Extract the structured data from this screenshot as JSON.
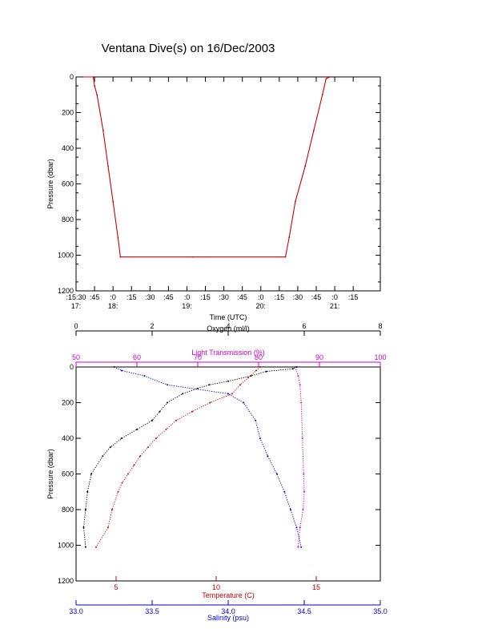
{
  "title": "Ventana Dive(s) on 16/Dec/2003",
  "colors": {
    "axis": "#000000",
    "temperature": "#cc0000",
    "salinity": "#0000cc",
    "oxygen": "#000000",
    "light": "#cc00cc",
    "track": "#cc0000"
  },
  "chart_data": [
    {
      "type": "line",
      "name": "dive-track",
      "xlabel": "Time (UTC)",
      "ylabel": "Pressure (dbar)",
      "x_unit": "minutes after 17:15",
      "xlim": [
        0,
        247
      ],
      "ylim": [
        0,
        1200
      ],
      "y_ticks": [
        "0",
        "200",
        "400",
        "600",
        "800",
        "1000",
        "1200"
      ],
      "x_ticks": [
        {
          "m": 0,
          "minor": ":15:30",
          "major": "17:"
        },
        {
          "m": 15,
          "minor": ":45",
          "major": ""
        },
        {
          "m": 30,
          "minor": ":0",
          "major": "18:"
        },
        {
          "m": 45,
          "minor": ":15",
          "major": ""
        },
        {
          "m": 60,
          "minor": ":30",
          "major": ""
        },
        {
          "m": 75,
          "minor": ":45",
          "major": ""
        },
        {
          "m": 90,
          "minor": ":0",
          "major": "19:"
        },
        {
          "m": 105,
          "minor": ":15",
          "major": ""
        },
        {
          "m": 120,
          "minor": ":30",
          "major": ""
        },
        {
          "m": 135,
          "minor": ":45",
          "major": ""
        },
        {
          "m": 150,
          "minor": ":0",
          "major": "20:"
        },
        {
          "m": 165,
          "minor": ":15",
          "major": ""
        },
        {
          "m": 180,
          "minor": ":30",
          "major": ""
        },
        {
          "m": 195,
          "minor": ":45",
          "major": ""
        },
        {
          "m": 210,
          "minor": ":0",
          "major": "21:"
        },
        {
          "m": 225,
          "minor": ":15",
          "major": ""
        }
      ],
      "points": [
        [
          5,
          0
        ],
        [
          14,
          0
        ],
        [
          15,
          50
        ],
        [
          17,
          100
        ],
        [
          22,
          300
        ],
        [
          26,
          500
        ],
        [
          30,
          700
        ],
        [
          34,
          900
        ],
        [
          36,
          1010
        ],
        [
          95,
          1010
        ],
        [
          170,
          1010
        ],
        [
          173,
          900
        ],
        [
          178,
          700
        ],
        [
          186,
          500
        ],
        [
          193,
          300
        ],
        [
          200,
          100
        ],
        [
          203,
          10
        ],
        [
          206,
          0
        ]
      ]
    },
    {
      "type": "scatter",
      "name": "profiles",
      "ylabel": "Pressure (dbar)",
      "ylim": [
        0,
        1200
      ],
      "y_ticks": [
        "0",
        "200",
        "400",
        "600",
        "800",
        "1000",
        "1200"
      ],
      "axes": {
        "oxygen": {
          "label": "Oxygen (ml/l)",
          "range": [
            0,
            8
          ],
          "ticks": [
            "0",
            "2",
            "4",
            "6",
            "8"
          ]
        },
        "light": {
          "label": "Light Transmission (%)",
          "range": [
            50,
            100
          ],
          "ticks": [
            "50",
            "60",
            "70",
            "80",
            "90",
            "100"
          ]
        },
        "temperature": {
          "label": "Temperature (C)",
          "range": [
            3,
            18.2
          ],
          "ticks": [
            "5",
            "10",
            "15"
          ],
          "tick_values": [
            5,
            10,
            15
          ]
        },
        "salinity": {
          "label": "Salinity (psu)",
          "range": [
            33,
            35
          ],
          "ticks": [
            "33.0",
            "33.5",
            "34.0",
            "34.5",
            "35.0"
          ]
        }
      },
      "series": [
        {
          "key": "oxygen",
          "values": [
            [
              0,
              5.8
            ],
            [
              10,
              5.7
            ],
            [
              25,
              5.0
            ],
            [
              50,
              4.6
            ],
            [
              80,
              4.0
            ],
            [
              100,
              3.5
            ],
            [
              120,
              3.2
            ],
            [
              150,
              2.8
            ],
            [
              200,
              2.4
            ],
            [
              250,
              2.2
            ],
            [
              300,
              2.0
            ],
            [
              350,
              1.6
            ],
            [
              400,
              1.2
            ],
            [
              450,
              0.9
            ],
            [
              500,
              0.7
            ],
            [
              600,
              0.4
            ],
            [
              700,
              0.3
            ],
            [
              800,
              0.25
            ],
            [
              900,
              0.2
            ],
            [
              1010,
              0.25
            ]
          ]
        },
        {
          "key": "light",
          "values": [
            [
              0,
              86
            ],
            [
              50,
              86.5
            ],
            [
              100,
              86.8
            ],
            [
              200,
              87
            ],
            [
              400,
              87.2
            ],
            [
              600,
              87.4
            ],
            [
              700,
              87.5
            ],
            [
              800,
              87.3
            ],
            [
              900,
              86.8
            ],
            [
              1010,
              86.5
            ]
          ]
        },
        {
          "key": "temperature",
          "values": [
            [
              0,
              12.2
            ],
            [
              20,
              12.0
            ],
            [
              60,
              11.6
            ],
            [
              100,
              11.2
            ],
            [
              150,
              10.8
            ],
            [
              200,
              9.7
            ],
            [
              250,
              8.8
            ],
            [
              300,
              8.0
            ],
            [
              350,
              7.5
            ],
            [
              400,
              7.0
            ],
            [
              450,
              6.6
            ],
            [
              500,
              6.2
            ],
            [
              550,
              5.9
            ],
            [
              600,
              5.6
            ],
            [
              650,
              5.3
            ],
            [
              700,
              5.1
            ],
            [
              800,
              4.8
            ],
            [
              900,
              4.6
            ],
            [
              1010,
              4.0
            ]
          ]
        },
        {
          "key": "salinity",
          "values": [
            [
              0,
              33.25
            ],
            [
              20,
              33.3
            ],
            [
              50,
              33.45
            ],
            [
              100,
              33.6
            ],
            [
              150,
              34.0
            ],
            [
              200,
              34.1
            ],
            [
              300,
              34.18
            ],
            [
              400,
              34.21
            ],
            [
              500,
              34.26
            ],
            [
              600,
              34.32
            ],
            [
              700,
              34.37
            ],
            [
              800,
              34.41
            ],
            [
              900,
              34.45
            ],
            [
              1010,
              34.48
            ]
          ]
        }
      ]
    }
  ]
}
